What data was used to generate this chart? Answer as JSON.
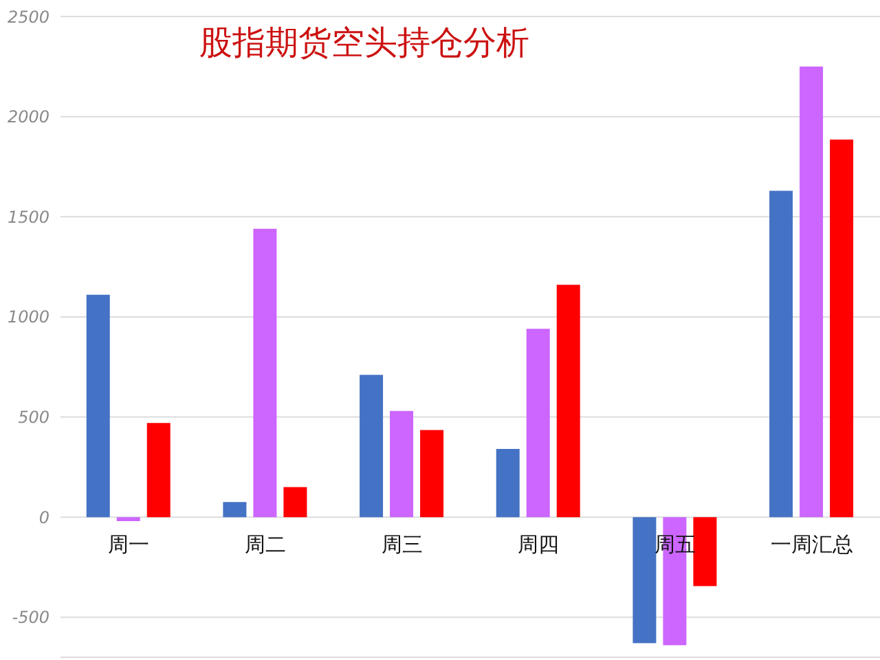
{
  "chart_data": {
    "type": "bar",
    "title": "股指期货空头持仓分析",
    "categories": [
      "周一",
      "周二",
      "周三",
      "周四",
      "周五",
      "一周汇总"
    ],
    "series": [
      {
        "color": "#4472c4",
        "values": [
          1110,
          75,
          710,
          340,
          -630,
          1630
        ]
      },
      {
        "color": "#cc66ff",
        "values": [
          -20,
          1440,
          530,
          940,
          -640,
          2250
        ]
      },
      {
        "color": "#ff0000",
        "values": [
          470,
          150,
          435,
          1160,
          -345,
          1885
        ]
      }
    ],
    "ylim": [
      -700,
      2500
    ],
    "yticks": [
      -500,
      0,
      500,
      1000,
      1500,
      2000,
      2500
    ],
    "grid": "y"
  }
}
